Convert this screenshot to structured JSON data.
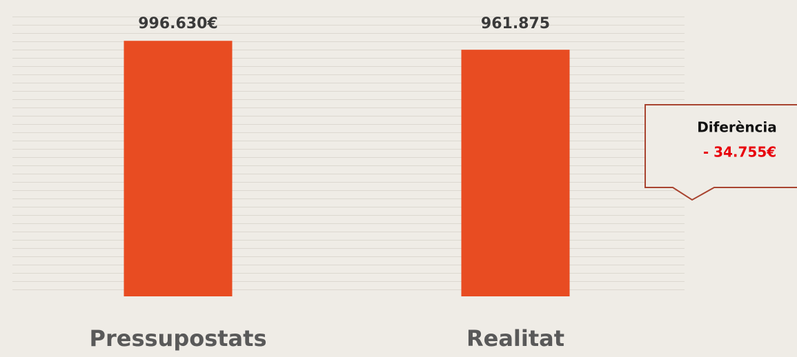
{
  "chart_data": {
    "type": "bar",
    "categories": [
      "Pressupostats",
      "Realitat"
    ],
    "values": [
      996630,
      961875
    ],
    "value_labels": [
      "996.630€",
      "961.875"
    ],
    "color": "#e84c22",
    "ylim": [
      0,
      1000000
    ],
    "annotation": {
      "title": "Diferència",
      "text": "- 34.755€"
    }
  }
}
